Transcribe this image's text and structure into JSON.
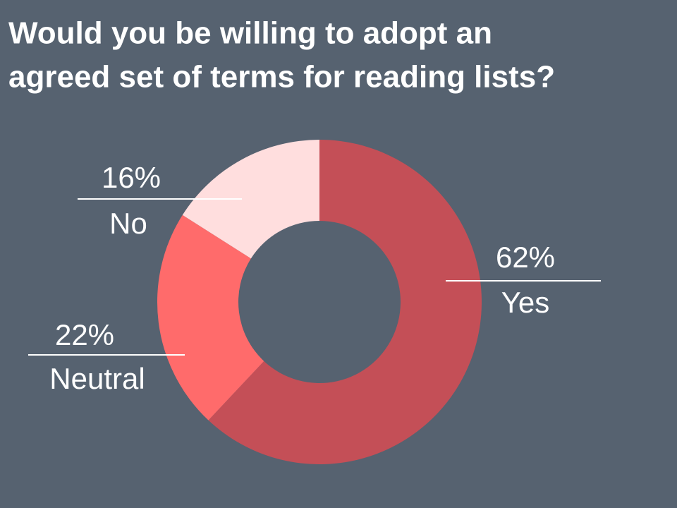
{
  "chart_data": {
    "type": "donut",
    "title": [
      "Would you be willing to adopt an",
      "agreed set of terms for reading lists?"
    ],
    "categories": [
      "Yes",
      "Neutral",
      "No"
    ],
    "values": [
      62,
      22,
      16
    ],
    "value_labels": [
      "62%",
      "22%",
      "16%"
    ],
    "colors": [
      "#c44f57",
      "#ff6b6b",
      "#ffdede"
    ]
  }
}
